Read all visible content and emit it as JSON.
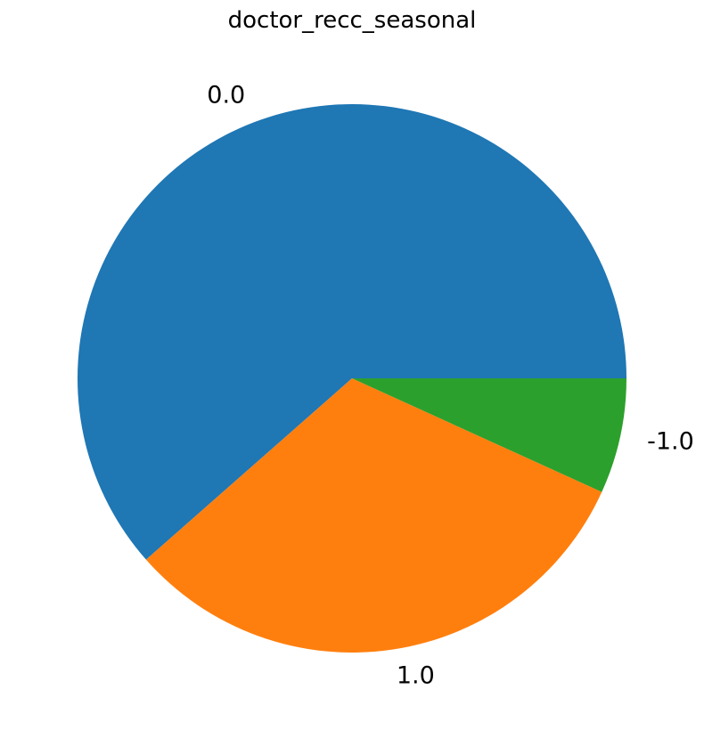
{
  "chart_data": {
    "type": "pie",
    "title": "doctor_recc_seasonal",
    "categories": [
      "0.0",
      "1.0",
      "-1.0"
    ],
    "values": [
      61.5,
      31.7,
      6.8
    ],
    "colors": [
      "#1f77b4",
      "#ff7f0e",
      "#2ca02c"
    ],
    "start_angle_deg": 0,
    "direction": "counterclockwise",
    "legend": "none"
  }
}
